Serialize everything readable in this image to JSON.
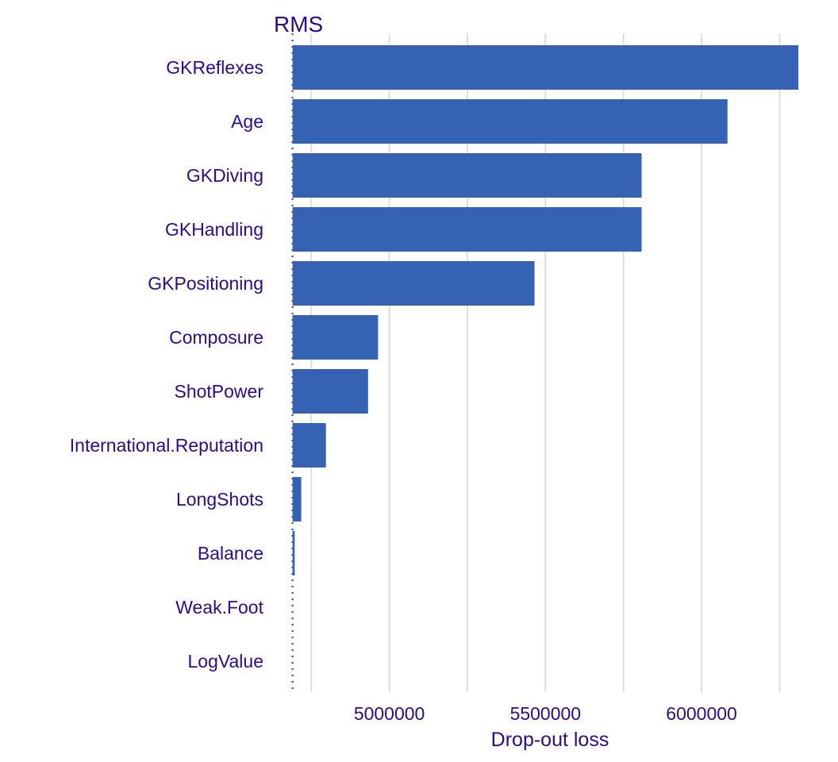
{
  "chart_data": {
    "type": "bar",
    "orientation": "horizontal",
    "title": "RMS",
    "xlabel": "Drop-out loss",
    "ylabel": "",
    "baseline": 4690000,
    "xlim": [
      4630000,
      6320000
    ],
    "xticks": [
      5000000,
      5500000,
      6000000
    ],
    "tick_labels": [
      "5000000",
      "5500000",
      "6000000"
    ],
    "minor_gridlines": [
      4750000,
      5250000,
      5750000,
      6250000
    ],
    "categories": [
      "GKReflexes",
      "Age",
      "GKDiving",
      "GKHandling",
      "GKPositioning",
      "Composure",
      "ShotPower",
      "International.Reputation",
      "LongShots",
      "Balance",
      "Weak.Foot",
      "LogValue"
    ],
    "values": [
      6310000,
      6083000,
      5808000,
      5808000,
      5465000,
      4964000,
      4932000,
      4797000,
      4718000,
      4697000,
      4690000,
      4690000
    ],
    "grid": true,
    "legend": "none",
    "colors": {
      "bar": "#3662b3",
      "text": "#2a0a96",
      "grid": "#dddddd",
      "baseline": "#3662b3"
    }
  }
}
